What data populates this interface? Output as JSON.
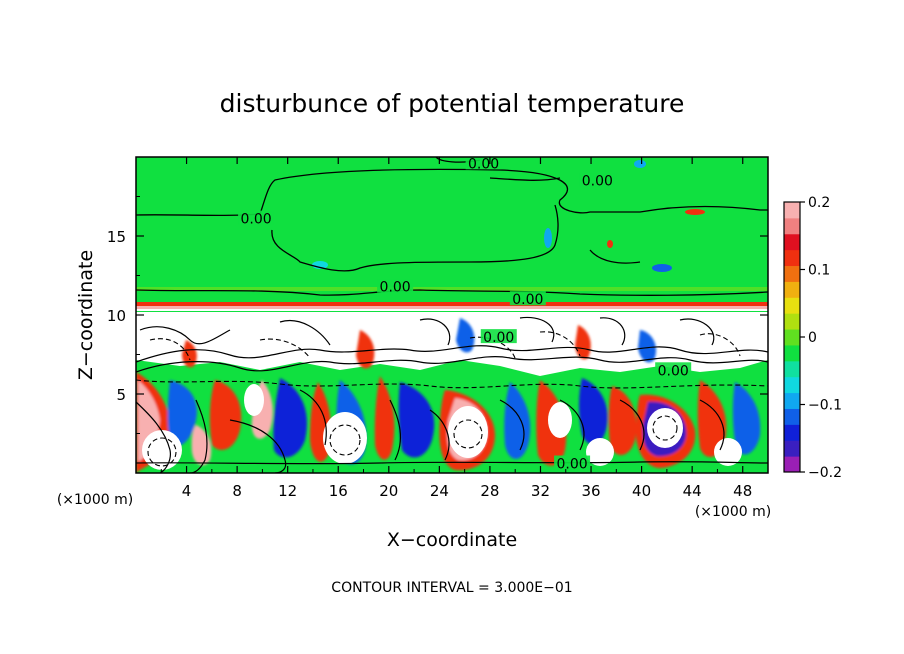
{
  "chart_data": {
    "type": "heatmap",
    "title": "disturbunce of potential temperature",
    "xlabel": "X−coordinate",
    "ylabel": "Z−coordinate",
    "x_unit_left": "(×1000 m)",
    "x_unit_right": "(×1000 m)",
    "xlim": [
      0,
      50
    ],
    "ylim": [
      0,
      20
    ],
    "xticks": [
      4,
      8,
      12,
      16,
      20,
      24,
      28,
      32,
      36,
      40,
      44,
      48
    ],
    "yticks": [
      5,
      10,
      15
    ],
    "colorbar": {
      "range": [
        -0.2,
        0.2
      ],
      "ticks": [
        {
          "value": 0.2,
          "label": "0.2"
        },
        {
          "value": 0.1,
          "label": "0.1"
        },
        {
          "value": 0,
          "label": "0"
        },
        {
          "value": -0.1,
          "label": "−0.1"
        },
        {
          "value": -0.2,
          "label": "−0.2"
        }
      ],
      "colors": [
        "#9a1fb5",
        "#3a1fc0",
        "#1020d8",
        "#1060e8",
        "#10a8f0",
        "#10d8e0",
        "#10e0a0",
        "#10e040",
        "#60e020",
        "#b0e010",
        "#e8e010",
        "#f0b010",
        "#f07010",
        "#f03010",
        "#e01020",
        "#f08080",
        "#f8b0b0"
      ]
    },
    "contour_labels": [
      {
        "x": 27.5,
        "y": 19.6,
        "text": "0.00"
      },
      {
        "x": 36.5,
        "y": 18.5,
        "text": "0.00"
      },
      {
        "x": 9.5,
        "y": 16.1,
        "text": "0.00"
      },
      {
        "x": 20.5,
        "y": 11.8,
        "text": "0.00"
      },
      {
        "x": 31.0,
        "y": 11.0,
        "text": "0.00"
      },
      {
        "x": 34.5,
        "y": 0.6,
        "text": "0.00"
      },
      {
        "x": 28.7,
        "y": 8.6,
        "text": "0.00"
      },
      {
        "x": 42.5,
        "y": 6.5,
        "text": "0.00"
      }
    ],
    "footer": "CONTOUR INTERVAL = 3.000E−01"
  }
}
